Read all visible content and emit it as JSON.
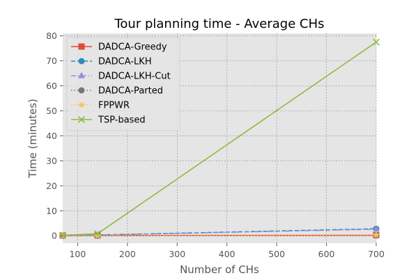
{
  "chart_data": {
    "type": "line",
    "title": "Tour planning time - Average CHs",
    "xlabel": "Number of CHs",
    "ylabel": "Time (minutes)",
    "xlim": [
      70,
      700
    ],
    "ylim": [
      -3,
      81
    ],
    "x": [
      70,
      140,
      700
    ],
    "xticks": [
      100,
      200,
      300,
      400,
      500,
      600,
      700
    ],
    "yticks": [
      0,
      10,
      20,
      30,
      40,
      50,
      60,
      70,
      80
    ],
    "grid": true,
    "legend_position": "top-left",
    "series": [
      {
        "name": "DADCA-Greedy",
        "values": [
          0.05,
          0.1,
          0.2
        ],
        "color": "#E24A33",
        "linestyle": "solid",
        "marker": "square"
      },
      {
        "name": "DADCA-LKH",
        "values": [
          0.1,
          0.3,
          2.8
        ],
        "color": "#348ABD",
        "linestyle": "dashed",
        "marker": "circle"
      },
      {
        "name": "DADCA-LKH-Cut",
        "values": [
          0.1,
          0.3,
          2.6
        ],
        "color": "#988ED5",
        "linestyle": "dashdot",
        "marker": "triangle"
      },
      {
        "name": "DADCA-Parted",
        "values": [
          0.05,
          0.1,
          0.25
        ],
        "color": "#777777",
        "linestyle": "dotted",
        "marker": "circle"
      },
      {
        "name": "FPPWR",
        "values": [
          0.05,
          0.1,
          0.3
        ],
        "color": "#FBC15E",
        "linestyle": "dotted",
        "marker": "star"
      },
      {
        "name": "TSP-based",
        "values": [
          0.2,
          0.8,
          77.5
        ],
        "color": "#8EBA42",
        "linestyle": "solid",
        "marker": "x"
      }
    ]
  }
}
